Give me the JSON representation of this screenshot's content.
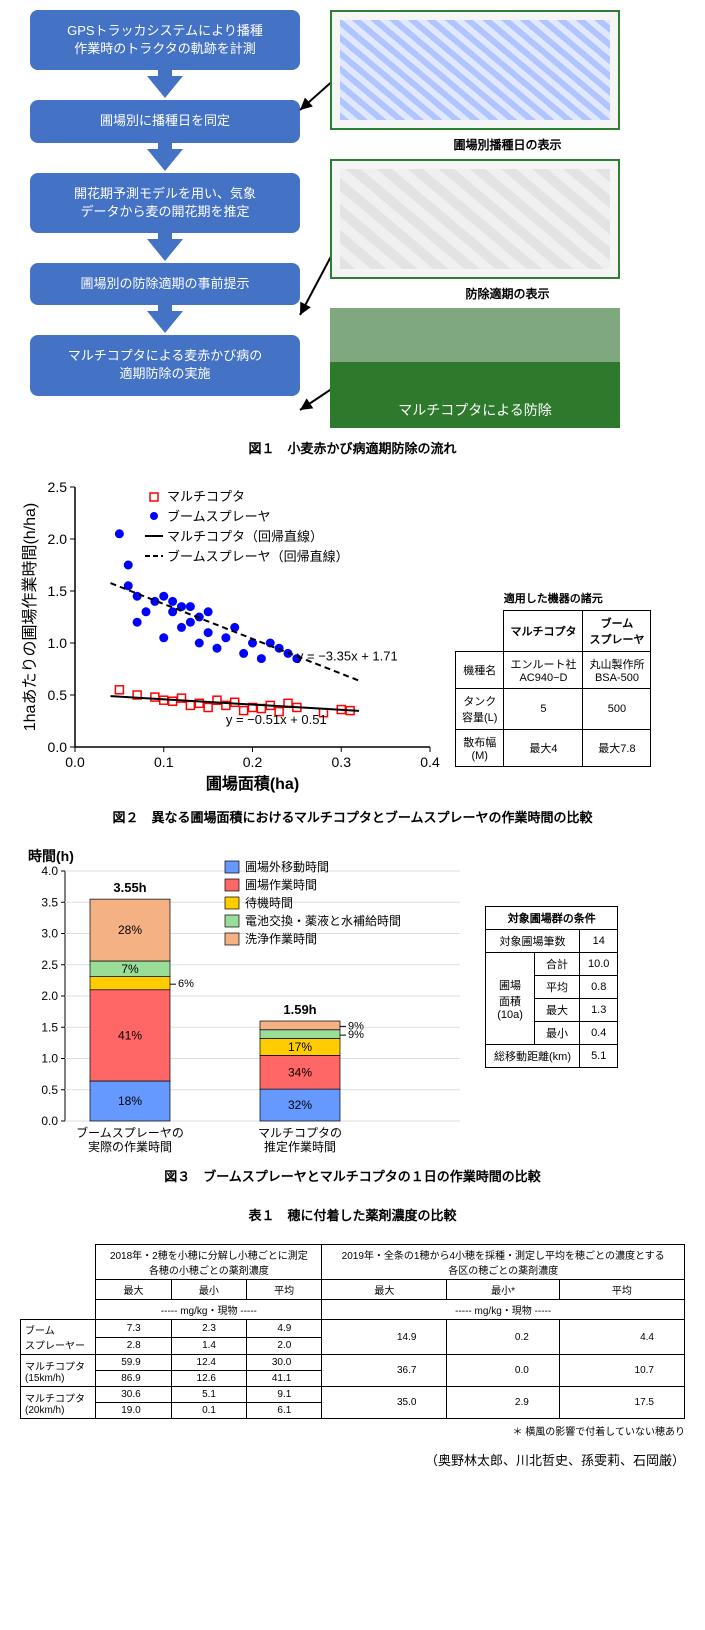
{
  "fig1": {
    "boxes": [
      "GPSトラッカシステムにより播種\n作業時のトラクタの軌跡を計測",
      "圃場別に播種日を同定",
      "開花期予測モデルを用い、気象\nデータから麦の開花期を推定",
      "圃場別の防除適期の事前提示",
      "マルチコプタによる麦赤かび病の\n適期防除の実施"
    ],
    "box_bg": "#4472c4",
    "right_captions": [
      "圃場別播種日の表示",
      "防除適期の表示",
      "マルチコプタによる防除"
    ],
    "caption": "図１　小麦赤かび病適期防除の流れ"
  },
  "fig2": {
    "chart": {
      "type": "scatter",
      "xlabel": "圃場面積(ha)",
      "ylabel": "1haあたりの圃場作業時間(h/ha)",
      "xlim": [
        0.0,
        0.4
      ],
      "xticks": [
        0.0,
        0.1,
        0.2,
        0.3,
        0.4
      ],
      "ylim": [
        0.0,
        2.5
      ],
      "yticks": [
        0.0,
        0.5,
        1.0,
        1.5,
        2.0,
        2.5
      ],
      "series": [
        {
          "name": "マルチコプタ",
          "marker": "square",
          "color": "#ff0000",
          "fill": "none",
          "points": [
            [
              0.05,
              0.55
            ],
            [
              0.07,
              0.5
            ],
            [
              0.09,
              0.48
            ],
            [
              0.1,
              0.45
            ],
            [
              0.11,
              0.44
            ],
            [
              0.12,
              0.47
            ],
            [
              0.13,
              0.4
            ],
            [
              0.14,
              0.42
            ],
            [
              0.15,
              0.38
            ],
            [
              0.16,
              0.45
            ],
            [
              0.17,
              0.4
            ],
            [
              0.18,
              0.43
            ],
            [
              0.19,
              0.35
            ],
            [
              0.2,
              0.38
            ],
            [
              0.21,
              0.37
            ],
            [
              0.22,
              0.4
            ],
            [
              0.23,
              0.34
            ],
            [
              0.24,
              0.42
            ],
            [
              0.25,
              0.38
            ],
            [
              0.28,
              0.33
            ],
            [
              0.3,
              0.36
            ],
            [
              0.31,
              0.35
            ]
          ]
        },
        {
          "name": "ブームスプレーヤ",
          "marker": "circle",
          "color": "#0000ff",
          "fill": "#0000ff",
          "points": [
            [
              0.05,
              2.05
            ],
            [
              0.06,
              1.75
            ],
            [
              0.06,
              1.55
            ],
            [
              0.07,
              1.2
            ],
            [
              0.07,
              1.45
            ],
            [
              0.08,
              1.3
            ],
            [
              0.09,
              1.4
            ],
            [
              0.1,
              1.45
            ],
            [
              0.1,
              1.05
            ],
            [
              0.11,
              1.3
            ],
            [
              0.11,
              1.4
            ],
            [
              0.12,
              1.15
            ],
            [
              0.12,
              1.35
            ],
            [
              0.13,
              1.2
            ],
            [
              0.13,
              1.35
            ],
            [
              0.14,
              1.25
            ],
            [
              0.14,
              1.0
            ],
            [
              0.15,
              1.3
            ],
            [
              0.15,
              1.1
            ],
            [
              0.16,
              0.95
            ],
            [
              0.17,
              1.05
            ],
            [
              0.18,
              1.15
            ],
            [
              0.19,
              0.9
            ],
            [
              0.2,
              1.0
            ],
            [
              0.21,
              0.85
            ],
            [
              0.22,
              1.0
            ],
            [
              0.23,
              0.95
            ],
            [
              0.24,
              0.9
            ],
            [
              0.25,
              0.85
            ]
          ]
        }
      ],
      "reg_lines": [
        {
          "name": "マルチコプタ（回帰直線）",
          "style": "solid",
          "slope": -0.51,
          "intercept": 0.51,
          "eq": "y = −0.51x + 0.51"
        },
        {
          "name": "ブームスプレーヤ（回帰直線）",
          "style": "dash",
          "slope": -3.35,
          "intercept": 1.71,
          "eq": "y = −3.35x + 1.71"
        }
      ],
      "axis_fontsize": 16,
      "tick_fontsize": 14,
      "legend_fontsize": 13
    },
    "spec_table": {
      "title": "適用した機器の諸元",
      "cols": [
        "",
        "マルチコプタ",
        "ブーム\nスプレーヤ"
      ],
      "rows": [
        [
          "機種名",
          "エンルート社\nAC940−D",
          "丸山製作所\nBSA-500"
        ],
        [
          "タンク\n容量(L)",
          "5",
          "500"
        ],
        [
          "散布幅\n(M)",
          "最大4",
          "最大7.8"
        ]
      ]
    },
    "caption": "図２　異なる圃場面積におけるマルチコプタとブームスプレーヤの作業時間の比較"
  },
  "fig3": {
    "chart": {
      "type": "stacked_bar",
      "ylabel": "時間(h)",
      "ylim": [
        0.0,
        4.0
      ],
      "ytick_step": 0.5,
      "categories": [
        "ブームスプレーヤの\n実際の作業時間",
        "マルチコプタの\n推定作業時間"
      ],
      "totals": [
        "3.55h",
        "1.59h"
      ],
      "segments": [
        {
          "name": "圃場外移動時間",
          "color": "#6699ff",
          "values": [
            0.64,
            0.51
          ]
        },
        {
          "name": "圃場作業時間",
          "color": "#ff6666",
          "values": [
            1.46,
            0.54
          ]
        },
        {
          "name": "待機時間",
          "color": "#ffcc00",
          "values": [
            0.21,
            0.27
          ]
        },
        {
          "name": "電池交換・薬液と水補給時間",
          "color": "#99dd99",
          "values": [
            0.25,
            0.14
          ]
        },
        {
          "name": "洗浄作業時間",
          "color": "#f4b183",
          "values": [
            0.99,
            0.14
          ]
        }
      ],
      "pct_labels": [
        [
          "18%",
          "41%",
          "6%",
          "7%",
          "28%"
        ],
        [
          "32%",
          "34%",
          "17%",
          "9%",
          "9%"
        ]
      ]
    },
    "cond_table": {
      "title": "対象圃場群の条件",
      "rows": [
        [
          "対象圃場筆数",
          "14"
        ],
        [
          "合計",
          "10.0"
        ],
        [
          "平均",
          "0.8"
        ],
        [
          "最大",
          "1.3"
        ],
        [
          "最小",
          "0.4"
        ],
        [
          "総移動距離(km)",
          "5.1"
        ]
      ],
      "area_label": "圃場\n面積\n(10a)"
    },
    "caption": "図３　ブームスプレーヤとマルチコプタの１日の作業時間の比較"
  },
  "table1": {
    "caption": "表１　穂に付着した薬剤濃度の比較",
    "head1": [
      "2018年・2穂を小穂に分解し小穂ごとに測定\n各穂の小穂ごとの薬剤濃度",
      "2019年・全条の1穂から4小穂を採種・測定し平均を穂ごとの濃度とする\n各区の穂ごとの薬剤濃度"
    ],
    "subhead_left": [
      "最大",
      "最小",
      "平均"
    ],
    "subhead_right": [
      "最大",
      "最小*",
      "平均"
    ],
    "unit": "----- mg/kg・現物 -----",
    "rows": [
      {
        "label": "ブーム\nスプレーヤー",
        "left": [
          [
            "7.3",
            "2.3",
            "4.9"
          ],
          [
            "2.8",
            "1.4",
            "2.0"
          ]
        ],
        "right": [
          "14.9",
          "0.2",
          "4.4"
        ]
      },
      {
        "label": "マルチコプタ\n(15km/h)",
        "left": [
          [
            "59.9",
            "12.4",
            "30.0"
          ],
          [
            "86.9",
            "12.6",
            "41.1"
          ]
        ],
        "right": [
          "36.7",
          "0.0",
          "10.7"
        ]
      },
      {
        "label": "マルチコプタ\n(20km/h)",
        "left": [
          [
            "30.6",
            "5.1",
            "9.1"
          ],
          [
            "19.0",
            "0.1",
            "6.1"
          ]
        ],
        "right": [
          "35.0",
          "2.9",
          "17.5"
        ]
      }
    ],
    "footnote": "＊ 横風の影響で付着していない穂あり"
  },
  "authors": "（奥野林太郎、川北哲史、孫雯莉、石岡厳）"
}
